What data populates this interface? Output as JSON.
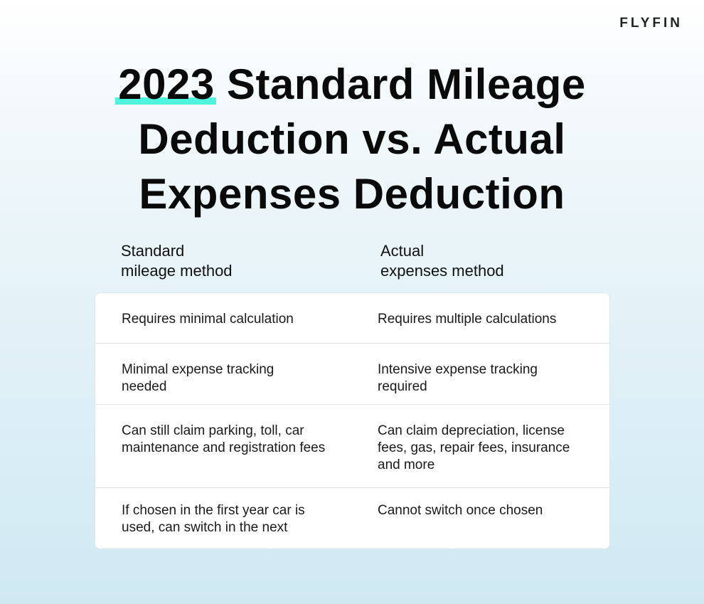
{
  "brand": "FLYFIN",
  "title": {
    "highlight": "2023",
    "line1_rest": " Standard Mileage",
    "line2": "Deduction vs. Actual",
    "line3": "Expenses Deduction"
  },
  "colors": {
    "highlight": "#4ff5dc"
  },
  "columns": [
    {
      "line1": "Standard",
      "line2": "mileage method"
    },
    {
      "line1": "Actual",
      "line2": "expenses method"
    }
  ],
  "rows": [
    {
      "standard": "Requires minimal calculation",
      "actual": "Requires multiple calculations"
    },
    {
      "standard": "Minimal expense tracking needed",
      "actual": "Intensive expense tracking required"
    },
    {
      "standard": "Can still claim parking, toll, car maintenance and registration fees",
      "actual": "Can claim depreciation, license fees, gas, repair fees, insurance and more"
    },
    {
      "standard": "If chosen in the first year car is used, can switch in the next",
      "actual": "Cannot switch once chosen"
    }
  ]
}
